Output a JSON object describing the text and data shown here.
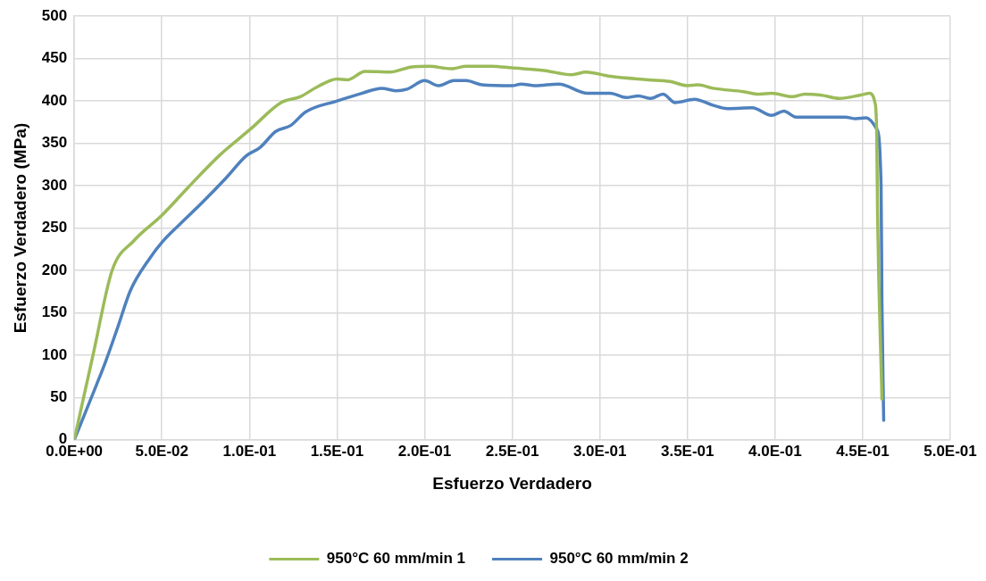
{
  "chart_data": {
    "type": "line",
    "xlabel": "Esfuerzo Verdadero",
    "ylabel": "Esfuerzo Verdadero (MPa)",
    "xlim": [
      0,
      0.5
    ],
    "xticks": [
      {
        "value": 0,
        "label": "0.0E+00"
      },
      {
        "value": 0.05,
        "label": "5.0E-02"
      },
      {
        "value": 0.1,
        "label": "1.0E-01"
      },
      {
        "value": 0.15,
        "label": "1.5E-01"
      },
      {
        "value": 0.2,
        "label": "2.0E-01"
      },
      {
        "value": 0.25,
        "label": "2.5E-01"
      },
      {
        "value": 0.3,
        "label": "3.0E-01"
      },
      {
        "value": 0.35,
        "label": "3.5E-01"
      },
      {
        "value": 0.4,
        "label": "4.0E-01"
      },
      {
        "value": 0.45,
        "label": "4.5E-01"
      },
      {
        "value": 0.5,
        "label": "5.0E-01"
      }
    ],
    "ylim": [
      0,
      500
    ],
    "yticks": [
      0,
      50,
      100,
      150,
      200,
      250,
      300,
      350,
      400,
      450,
      500
    ],
    "grid": true,
    "legend": "bottom",
    "marker": "none",
    "line_style": "solid",
    "series": [
      {
        "name": "950°C 60 mm/min 1",
        "color": "#9bbb59",
        "x": [
          0,
          0.011,
          0.0216,
          0.034,
          0.05,
          0.065,
          0.083,
          0.1007,
          0.118,
          0.129,
          0.139,
          0.15,
          0.156,
          0.166,
          0.18,
          0.192,
          0.2025,
          0.215,
          0.224,
          0.238,
          0.25,
          0.268,
          0.284,
          0.292,
          0.306,
          0.3275,
          0.34,
          0.35,
          0.356,
          0.3645,
          0.382,
          0.391,
          0.398,
          0.41,
          0.417,
          0.426,
          0.4367,
          0.449,
          0.454,
          0.457,
          0.458,
          0.4585,
          0.461
        ],
        "values": [
          0,
          103,
          200,
          235,
          265,
          298,
          336,
          367,
          398,
          405,
          417,
          426,
          425,
          435,
          434,
          440,
          441,
          438,
          441,
          441,
          439,
          436,
          431,
          434,
          429,
          425,
          423,
          418,
          419,
          415,
          411,
          408,
          409,
          405,
          408,
          407,
          403,
          407,
          409,
          398,
          363,
          267,
          48
        ]
      },
      {
        "name": "950°C 60 mm/min 2",
        "color": "#4f81bd",
        "x": [
          0,
          0.0127,
          0.018,
          0.025,
          0.032,
          0.043,
          0.05,
          0.06,
          0.073,
          0.0866,
          0.098,
          0.106,
          0.115,
          0.1235,
          0.132,
          0.15,
          0.164,
          0.1755,
          0.1835,
          0.19,
          0.2,
          0.208,
          0.2167,
          0.2237,
          0.2326,
          0.25,
          0.255,
          0.263,
          0.2765,
          0.293,
          0.306,
          0.315,
          0.322,
          0.329,
          0.336,
          0.343,
          0.354,
          0.3645,
          0.373,
          0.387,
          0.398,
          0.405,
          0.412,
          0.44,
          0.446,
          0.452,
          0.458,
          0.4605,
          0.461,
          0.462
        ],
        "values": [
          0,
          65,
          93,
          134,
          176,
          214,
          233,
          254,
          280,
          309,
          335,
          345,
          364,
          371,
          387,
          400,
          409,
          415,
          412,
          414,
          424,
          418,
          424,
          424,
          419,
          418,
          420,
          418,
          420,
          409,
          409,
          404,
          406,
          403,
          408,
          398,
          402,
          395,
          391,
          392,
          383,
          388,
          381,
          381,
          379,
          380,
          367,
          301,
          162,
          23
        ]
      }
    ]
  }
}
